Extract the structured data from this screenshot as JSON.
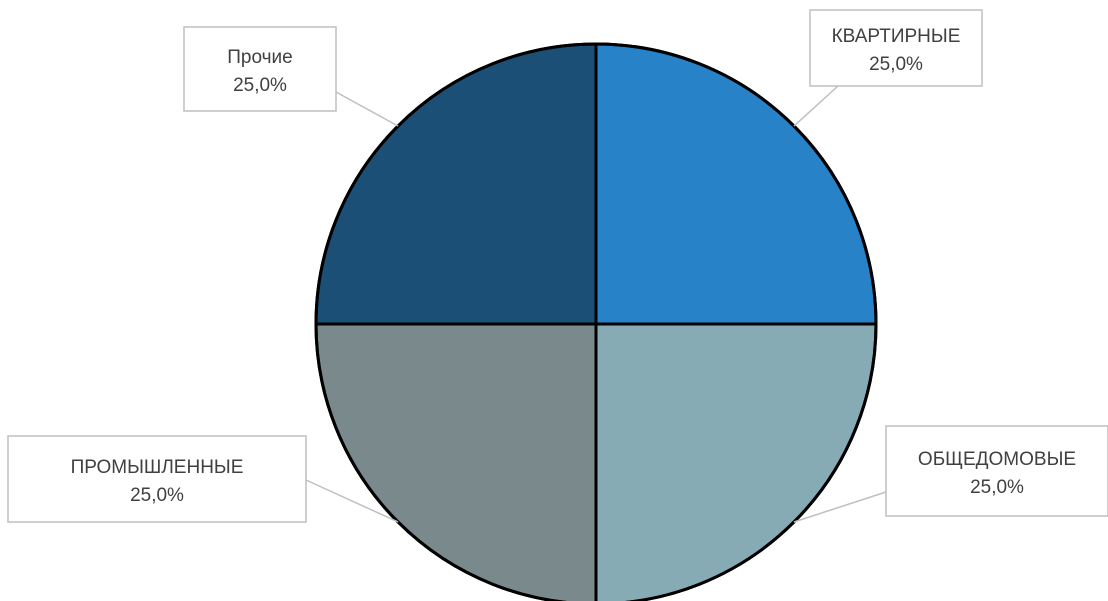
{
  "chart_data": {
    "type": "pie",
    "title": "",
    "slices": [
      {
        "label": "КВАРТИРНЫЕ",
        "value": 25.0,
        "value_label": "25,0%",
        "color": "#2782C8"
      },
      {
        "label": "ОБЩЕДОМОВЫЕ",
        "value": 25.0,
        "value_label": "25,0%",
        "color": "#86ABB5"
      },
      {
        "label": "ПРОМЫШЛЕННЫЕ",
        "value": 25.0,
        "value_label": "25,0%",
        "color": "#7A8A8C"
      },
      {
        "label": "Прочие",
        "value": 25.0,
        "value_label": "25,0%",
        "color": "#1C4F76"
      }
    ],
    "legend": "none",
    "data_labels": "callouts"
  }
}
